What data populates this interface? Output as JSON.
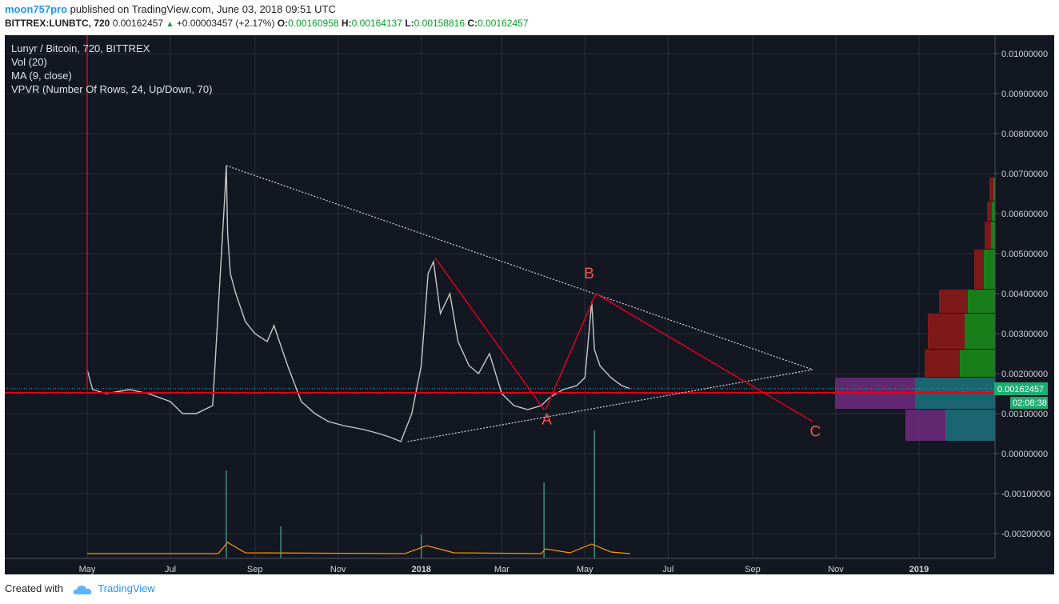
{
  "header": {
    "author": "moon757pro",
    "published": "published on TradingView.com, June 03, 2018 09:51 UTC",
    "symbol": "BITTREX:LUNBTC, 720",
    "last": "0.00162457",
    "change": "+0.00003457 (+2.17%)",
    "o_label": "O:",
    "o_value": "0.00160958",
    "h_label": "H:",
    "h_value": "0.00164137",
    "l_label": "L:",
    "l_value": "0.00158816",
    "c_label": "C:",
    "c_value": "0.00162457"
  },
  "legend": {
    "title": "Lunyr / Bitcoin, 720, BITTREX",
    "vol": "Vol (20)",
    "ma": "MA (9, close)",
    "vpvr": "VPVR (Number Of Rows, 24, Up/Down, 70)"
  },
  "price_badge": "0.00162457",
  "countdown_badge": "02:08:38",
  "footer": {
    "created": "Created with",
    "brand": "TradingView"
  },
  "colors": {
    "background": "#131722",
    "grid": "#2a2e39",
    "candle": "#c8c8c8",
    "trendline": "#e0001b",
    "pattern": "#d7d7d7",
    "vpvr_up": "#1a8a1a",
    "vpvr_down": "#8b1a1a",
    "vpvr_va_up": "#1c6e7a",
    "vpvr_va_down": "#6a2a7a",
    "ma": "#ff9800"
  },
  "chart_data": {
    "type": "line",
    "title": "Lunyr / Bitcoin, 720, BITTREX",
    "xlabel": "",
    "ylabel": "",
    "ylim": [
      -0.0027,
      0.0105
    ],
    "grid": true,
    "x_ticks": [
      "May",
      "Jul",
      "Sep",
      "Nov",
      "2018",
      "Mar",
      "May",
      "Jul",
      "Sep",
      "Nov",
      "2019"
    ],
    "y_ticks": [
      "0.01000000",
      "0.00900000",
      "0.00800000",
      "0.00700000",
      "0.00600000",
      "0.00500000",
      "0.00400000",
      "0.00300000",
      "0.00200000",
      "0.00100000",
      "0.00000000",
      "-0.00100000",
      "-0.00200000"
    ],
    "y_tick_values": [
      0.01,
      0.009,
      0.008,
      0.007,
      0.006,
      0.005,
      0.004,
      0.003,
      0.002,
      0.001,
      0.0,
      -0.001,
      -0.002
    ],
    "series": [
      {
        "x": [
          "2017-05-01",
          "2017-05-05",
          "2017-05-15",
          "2017-06-01",
          "2017-06-15",
          "2017-07-01",
          "2017-07-10",
          "2017-07-20",
          "2017-08-01",
          "2017-08-10",
          "2017-08-11",
          "2017-08-12",
          "2017-08-14",
          "2017-08-18",
          "2017-08-25",
          "2017-09-01",
          "2017-09-10",
          "2017-09-15",
          "2017-09-25",
          "2017-10-05",
          "2017-10-15",
          "2017-10-25",
          "2017-11-05",
          "2017-11-20",
          "2017-12-01",
          "2017-12-10",
          "2017-12-17",
          "2017-12-25",
          "2018-01-01",
          "2018-01-06",
          "2018-01-10",
          "2018-01-15",
          "2018-01-22",
          "2018-01-28",
          "2018-02-05",
          "2018-02-12",
          "2018-02-20",
          "2018-03-01",
          "2018-03-10",
          "2018-03-20",
          "2018-03-30",
          "2018-04-05",
          "2018-04-15",
          "2018-04-25",
          "2018-05-01",
          "2018-05-06",
          "2018-05-08",
          "2018-05-12",
          "2018-05-20",
          "2018-05-28",
          "2018-06-03"
        ],
        "values": [
          0.0021,
          0.0016,
          0.0015,
          0.0016,
          0.0015,
          0.0013,
          0.001,
          0.001,
          0.0012,
          0.0065,
          0.0072,
          0.0055,
          0.0045,
          0.004,
          0.0033,
          0.003,
          0.0028,
          0.0032,
          0.0022,
          0.0013,
          0.001,
          0.0008,
          0.0007,
          0.0006,
          0.0005,
          0.0004,
          0.0003,
          0.001,
          0.0022,
          0.0045,
          0.0048,
          0.0035,
          0.004,
          0.0028,
          0.0022,
          0.002,
          0.0025,
          0.0015,
          0.0012,
          0.0011,
          0.0012,
          0.0014,
          0.0016,
          0.0017,
          0.0019,
          0.0038,
          0.0026,
          0.0022,
          0.0019,
          0.0017,
          0.00162457
        ]
      }
    ],
    "current_price": 0.00162457,
    "horizontal_line": 0.00152,
    "annotations": [
      {
        "label": "A",
        "x": "2018-04-03",
        "y": 0.00073
      },
      {
        "label": "B",
        "x": "2018-05-04",
        "y": 0.00438
      },
      {
        "label": "C",
        "x": "2018-10-17",
        "y": 0.00043
      }
    ],
    "pattern_lines": [
      {
        "from": [
          "2017-08-11",
          0.0072
        ],
        "to": [
          "2018-10-15",
          0.0021
        ]
      },
      {
        "from": [
          "2017-12-22",
          0.0003
        ],
        "to": [
          "2018-10-15",
          0.0021
        ]
      }
    ],
    "wave_lines": [
      {
        "from": [
          "2018-01-11",
          0.0049
        ],
        "to": [
          "2018-04-01",
          0.0011
        ]
      },
      {
        "from": [
          "2018-04-02",
          0.0011
        ],
        "to": [
          "2018-05-09",
          0.004
        ]
      },
      {
        "from": [
          "2018-05-09",
          0.004
        ],
        "to": [
          "2018-10-15",
          0.0008
        ]
      }
    ]
  }
}
